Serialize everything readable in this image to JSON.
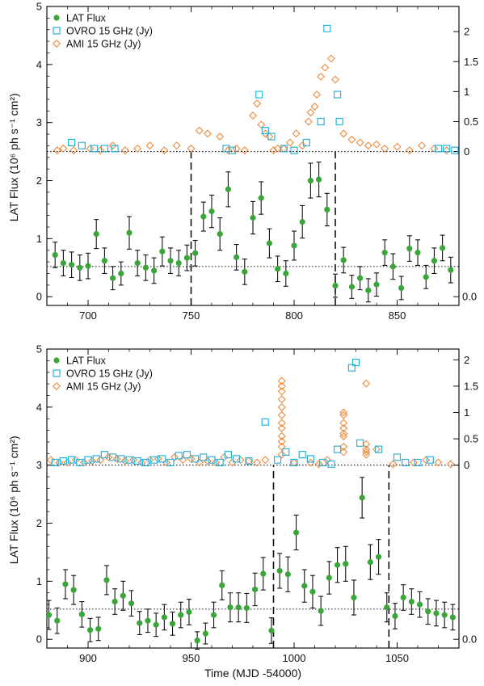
{
  "colors": {
    "lat": "#3aa63a",
    "ovro": "#2bb3e0",
    "ami": "#ee8a3c",
    "axis": "#111111"
  },
  "chart_data": [
    {
      "type": "scatter",
      "xlabel": "",
      "ylabel": "LAT Flux (10⁶ ph s⁻¹ cm²)",
      "xlim": [
        680,
        880
      ],
      "ylim": [
        -0.15,
        5.0
      ],
      "radio_ylim": [
        -0.1,
        2.25
      ],
      "radio_offset": 2.5,
      "xticks": [
        700,
        750,
        800,
        850
      ],
      "yticks": [
        0,
        1,
        2,
        3,
        4,
        5
      ],
      "radio_ticks": [
        {
          "value": 0,
          "label": "0"
        },
        {
          "value": 0.5,
          "label": "0.5"
        },
        {
          "value": 1,
          "label": "1"
        },
        {
          "value": 1.5,
          "label": "1.5"
        },
        {
          "value": 2,
          "label": "2"
        }
      ],
      "radio_low_tick": {
        "value": 0.0,
        "label": "0.0"
      },
      "legend": [
        "LAT Flux",
        "OVRO 15 GHz (Jy)",
        "AMI 15 GHz (Jy)"
      ],
      "hlines": [
        2.5,
        0.52
      ],
      "vlines": [
        {
          "x": 750,
          "y0": -0.15,
          "y1": 2.5
        },
        {
          "x": 820,
          "y0": -0.15,
          "y1": 2.5
        }
      ],
      "series": [
        {
          "name": "LAT Flux",
          "x": [
            684,
            688,
            692,
            696,
            700,
            704,
            708,
            712,
            716,
            720,
            724,
            728,
            732,
            736,
            740,
            744,
            748,
            752,
            756,
            760,
            764,
            768,
            772,
            776,
            780,
            784,
            788,
            792,
            796,
            800,
            804,
            808,
            812,
            816,
            820,
            824,
            828,
            832,
            836,
            840,
            844,
            848,
            852,
            856,
            860,
            864,
            868,
            872,
            876
          ],
          "y": [
            0.72,
            0.58,
            0.55,
            0.5,
            0.53,
            1.08,
            0.62,
            0.32,
            0.4,
            1.1,
            0.58,
            0.5,
            0.45,
            0.78,
            0.62,
            0.58,
            0.67,
            0.75,
            1.38,
            1.47,
            1.08,
            1.85,
            0.68,
            0.43,
            1.36,
            1.7,
            0.92,
            0.48,
            0.4,
            0.88,
            1.29,
            2.0,
            2.02,
            1.5,
            0.19,
            0.63,
            0.17,
            0.32,
            0.11,
            0.21,
            0.76,
            0.52,
            0.15,
            0.83,
            0.76,
            0.34,
            0.62,
            0.84,
            0.46
          ],
          "err": [
            0.22,
            0.22,
            0.22,
            0.22,
            0.22,
            0.25,
            0.22,
            0.2,
            0.2,
            0.28,
            0.22,
            0.22,
            0.22,
            0.25,
            0.22,
            0.22,
            0.22,
            0.22,
            0.25,
            0.28,
            0.28,
            0.3,
            0.22,
            0.22,
            0.28,
            0.28,
            0.25,
            0.22,
            0.22,
            0.25,
            0.28,
            0.3,
            0.3,
            0.28,
            0.2,
            0.22,
            0.2,
            0.2,
            0.2,
            0.2,
            0.22,
            0.22,
            0.2,
            0.22,
            0.22,
            0.2,
            0.22,
            0.22,
            0.22
          ]
        },
        {
          "name": "OVRO 15 GHz (Jy)",
          "x": [
            692,
            697,
            703,
            708,
            713,
            767,
            770,
            783,
            786,
            789,
            795,
            800,
            806,
            813,
            816,
            821,
            822,
            870,
            874,
            878
          ],
          "y": [
            0.15,
            0.1,
            0.05,
            0.05,
            0.05,
            0.05,
            0.02,
            0.95,
            0.35,
            0.25,
            0.05,
            0.02,
            0.15,
            0.5,
            2.05,
            0.95,
            0.5,
            0.05,
            0.05,
            0.02
          ]
        },
        {
          "name": "AMI 15 GHz (Jy)",
          "x": [
            685,
            688,
            693,
            701,
            706,
            712,
            718,
            724,
            730,
            737,
            743,
            750,
            754,
            758,
            764,
            768,
            772,
            776,
            780,
            782,
            784,
            786,
            788,
            790,
            792,
            795,
            798,
            801,
            804,
            807,
            808,
            810,
            811,
            813,
            815,
            818,
            820,
            824,
            828,
            832,
            836,
            840,
            844,
            850,
            856,
            862,
            868,
            874
          ],
          "y": [
            0.02,
            0.05,
            0.02,
            0.05,
            0.02,
            0.1,
            0.02,
            0.05,
            0.1,
            0.02,
            0.1,
            0.05,
            0.35,
            0.3,
            0.25,
            0.02,
            0.05,
            0.02,
            0.6,
            0.8,
            0.45,
            0.3,
            0.25,
            0.02,
            0.05,
            0.05,
            0.15,
            0.3,
            0.1,
            0.5,
            0.65,
            0.75,
            0.95,
            1.25,
            1.4,
            1.55,
            1.2,
            0.3,
            0.2,
            0.15,
            0.1,
            0.12,
            0.05,
            0.08,
            0.02,
            0.1,
            0.05,
            0.02
          ]
        }
      ]
    },
    {
      "type": "scatter",
      "xlabel": "Time (MJD -54000)",
      "ylabel": "LAT Flux (10⁶ ph s⁻¹ cm²)",
      "xlim": [
        880,
        1080
      ],
      "ylim": [
        -0.15,
        5.0
      ],
      "radio_ylim": [
        -0.1,
        2.05
      ],
      "radio_offset": 3.0,
      "xticks": [
        900,
        950,
        1000,
        1050
      ],
      "yticks": [
        0,
        1,
        2,
        3,
        4,
        5
      ],
      "radio_ticks": [
        {
          "value": 0,
          "label": "0"
        },
        {
          "value": 0.5,
          "label": "0.5"
        },
        {
          "value": 1,
          "label": "1"
        },
        {
          "value": 1.5,
          "label": "1.5"
        },
        {
          "value": 2,
          "label": "2"
        }
      ],
      "radio_low_tick": {
        "value": 0.0,
        "label": "0.0"
      },
      "legend": [
        "LAT Flux",
        "OVRO 15 GHz (Jy)",
        "AMI 15 GHz (Jy)"
      ],
      "hlines": [
        3.0,
        0.52
      ],
      "vlines": [
        {
          "x": 990,
          "y0": -0.15,
          "y1": 3.0
        },
        {
          "x": 1046,
          "y0": -0.15,
          "y1": 3.0
        }
      ],
      "series": [
        {
          "name": "LAT Flux",
          "x": [
            881,
            885,
            889,
            893,
            897,
            901,
            905,
            909,
            913,
            917,
            921,
            925,
            929,
            933,
            937,
            941,
            945,
            949,
            953,
            957,
            961,
            965,
            969,
            973,
            977,
            981,
            985,
            989,
            993,
            997,
            1001,
            1005,
            1009,
            1013,
            1017,
            1021,
            1025,
            1029,
            1033,
            1037,
            1041,
            1045,
            1049,
            1053,
            1057,
            1061,
            1065,
            1069,
            1073,
            1077
          ],
          "y": [
            0.42,
            0.32,
            0.95,
            0.85,
            0.43,
            0.16,
            0.18,
            1.02,
            0.65,
            0.75,
            0.62,
            0.28,
            0.32,
            0.25,
            0.38,
            0.27,
            0.42,
            0.47,
            -0.02,
            0.1,
            0.42,
            0.93,
            0.55,
            0.55,
            0.54,
            0.86,
            1.13,
            0.15,
            1.18,
            1.12,
            1.84,
            0.92,
            0.82,
            0.49,
            1.06,
            1.28,
            1.3,
            0.72,
            2.44,
            1.33,
            1.42,
            0.55,
            0.4,
            0.72,
            0.65,
            0.6,
            0.48,
            0.45,
            0.42,
            0.38
          ],
          "err": [
            0.25,
            0.22,
            0.25,
            0.25,
            0.22,
            0.2,
            0.2,
            0.25,
            0.22,
            0.25,
            0.22,
            0.2,
            0.2,
            0.2,
            0.22,
            0.2,
            0.22,
            0.22,
            0.15,
            0.18,
            0.22,
            0.25,
            0.25,
            0.25,
            0.25,
            0.28,
            0.28,
            0.22,
            0.3,
            0.3,
            0.3,
            0.28,
            0.28,
            0.25,
            0.28,
            0.3,
            0.3,
            0.3,
            0.35,
            0.3,
            0.3,
            0.25,
            0.22,
            0.22,
            0.22,
            0.22,
            0.22,
            0.22,
            0.22,
            0.22
          ]
        },
        {
          "name": "OVRO 15 GHz (Jy)",
          "x": [
            884,
            888,
            892,
            896,
            900,
            904,
            908,
            912,
            916,
            920,
            924,
            928,
            932,
            936,
            940,
            944,
            948,
            952,
            956,
            960,
            964,
            968,
            972,
            978,
            986,
            992,
            996,
            1000,
            1004,
            1008,
            1014,
            1018,
            1021,
            1028,
            1030,
            1032,
            1041,
            1050,
            1054,
            1060,
            1066
          ],
          "y": [
            0.05,
            0.08,
            0.1,
            0.05,
            0.1,
            0.12,
            0.2,
            0.15,
            0.12,
            0.1,
            0.08,
            0.05,
            0.1,
            0.12,
            0.05,
            0.18,
            0.2,
            0.12,
            0.15,
            0.1,
            0.05,
            0.2,
            0.12,
            0.08,
            0.82,
            0.1,
            0.25,
            0.05,
            0.2,
            0.12,
            0.05,
            0.02,
            0.3,
            1.85,
            1.95,
            0.42,
            0.3,
            0.15,
            0.05,
            0.05,
            0.1
          ],
          "y_fix": [
            0.05,
            0.08,
            0.1,
            0.05,
            0.1,
            0.12,
            0.2,
            0.15,
            0.12,
            0.1,
            0.08,
            0.05,
            0.1,
            0.12,
            0.05,
            0.18,
            0.2,
            0.12,
            0.15,
            0.1,
            0.05,
            0.2,
            0.12,
            0.08,
            0.82,
            0.1,
            0.25,
            0.05,
            0.2,
            0.12,
            0.05,
            0.02,
            0.3,
            1.85,
            1.95,
            0.42,
            0.3,
            0.15,
            0.05,
            0.05,
            0.1
          ]
        },
        {
          "name": "AMI 15 GHz (Jy)",
          "x": [
            882,
            886,
            890,
            894,
            898,
            902,
            906,
            910,
            914,
            918,
            922,
            926,
            930,
            934,
            938,
            942,
            946,
            950,
            954,
            958,
            962,
            966,
            970,
            974,
            978,
            982,
            986,
            994,
            994,
            994,
            994,
            994,
            994,
            994,
            994,
            994,
            994,
            994,
            994,
            1000,
            1008,
            1012,
            1016,
            1024,
            1024,
            1024,
            1024,
            1024,
            1024,
            1024,
            1024,
            1035,
            1035,
            1035,
            1035,
            1035,
            1040,
            1048,
            1058,
            1064,
            1070,
            1076
          ],
          "y": [
            0.1,
            0.05,
            0.05,
            0.1,
            0.05,
            0.08,
            0.1,
            0.15,
            0.12,
            0.08,
            0.1,
            0.05,
            0.1,
            0.12,
            0.05,
            0.15,
            0.1,
            0.12,
            0.05,
            0.08,
            0.05,
            0.15,
            0.05,
            0.1,
            0.08,
            0.05,
            0.1,
            1.6,
            1.5,
            1.4,
            1.25,
            1.1,
            0.95,
            0.8,
            0.7,
            0.55,
            0.45,
            0.35,
            0.2,
            0.05,
            0.05,
            0.02,
            0.1,
            1.0,
            0.95,
            0.8,
            0.7,
            0.6,
            0.55,
            0.35,
            0.25,
            1.55,
            0.4,
            0.3,
            0.25,
            0.2,
            0.3,
            0.02,
            0.05,
            0.1,
            0.05,
            0.02
          ]
        }
      ]
    }
  ]
}
